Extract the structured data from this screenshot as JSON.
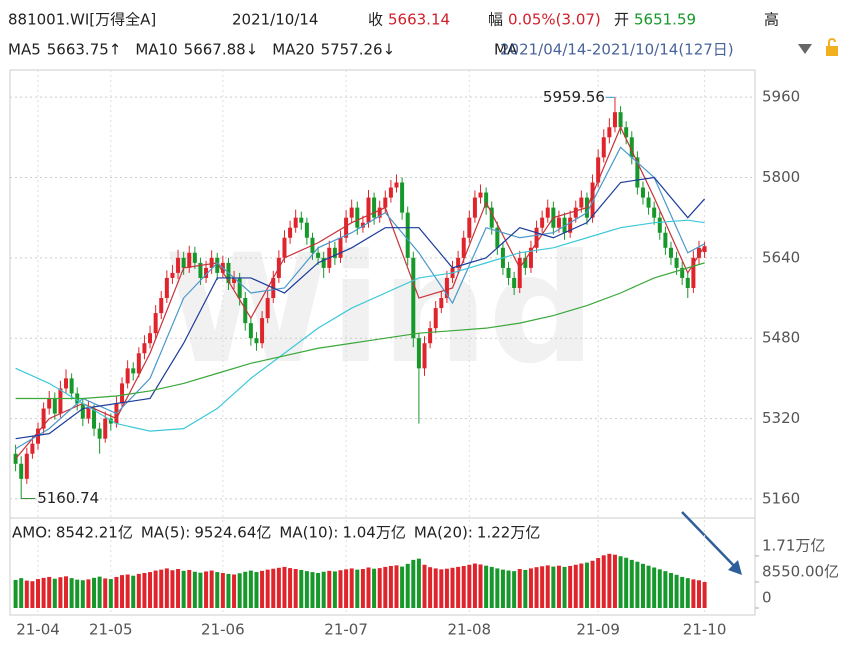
{
  "header": {
    "code": "881001.WI[万得全A]",
    "date": "2021/10/14",
    "close_label": "收",
    "close": 5663.14,
    "change_label": "幅",
    "change": "0.05%(3.07)",
    "open_label": "开",
    "open": 5651.59,
    "high_label": "高",
    "range_prefix": "MA",
    "range": "2021/04/14-2021/10/14(127日)"
  },
  "chart_data": [
    {
      "type": "candlestick",
      "up_color": "#e0242b",
      "down_color": "#16982a",
      "xlim": [
        -1,
        132
      ],
      "ylim": [
        5130,
        6010
      ],
      "yticks": [
        5160,
        5320,
        5480,
        5640,
        5800,
        5960
      ],
      "xticks": [
        {
          "value": 4,
          "label": "21-04"
        },
        {
          "value": 17,
          "label": "21-05"
        },
        {
          "value": 37,
          "label": "21-06"
        },
        {
          "value": 59,
          "label": "21-07"
        },
        {
          "value": 81,
          "label": "21-08"
        },
        {
          "value": 104,
          "label": "21-09"
        },
        {
          "value": 123,
          "label": "21-10"
        }
      ],
      "grid": true,
      "watermark": "Wind",
      "candles": [
        [
          5250,
          5268,
          5215,
          5230
        ],
        [
          5230,
          5245,
          5160.74,
          5200
        ],
        [
          5200,
          5262,
          5190,
          5250
        ],
        [
          5250,
          5285,
          5240,
          5270
        ],
        [
          5270,
          5312,
          5258,
          5300
        ],
        [
          5300,
          5352,
          5290,
          5340
        ],
        [
          5340,
          5375,
          5328,
          5360
        ],
        [
          5360,
          5372,
          5318,
          5330
        ],
        [
          5330,
          5395,
          5322,
          5380
        ],
        [
          5380,
          5418,
          5370,
          5400
        ],
        [
          5400,
          5410,
          5358,
          5370
        ],
        [
          5370,
          5382,
          5336,
          5350
        ],
        [
          5350,
          5360,
          5305,
          5320
        ],
        [
          5320,
          5355,
          5310,
          5340
        ],
        [
          5340,
          5348,
          5285,
          5300
        ],
        [
          5300,
          5312,
          5250,
          5280
        ],
        [
          5280,
          5334,
          5272,
          5320
        ],
        [
          5320,
          5330,
          5296,
          5310
        ],
        [
          5310,
          5364,
          5302,
          5350
        ],
        [
          5350,
          5402,
          5342,
          5390
        ],
        [
          5390,
          5436,
          5380,
          5420
        ],
        [
          5420,
          5432,
          5396,
          5410
        ],
        [
          5410,
          5462,
          5402,
          5450
        ],
        [
          5450,
          5486,
          5438,
          5470
        ],
        [
          5470,
          5505,
          5460,
          5490
        ],
        [
          5490,
          5546,
          5480,
          5530
        ],
        [
          5530,
          5574,
          5518,
          5560
        ],
        [
          5560,
          5615,
          5550,
          5600
        ],
        [
          5600,
          5626,
          5588,
          5610
        ],
        [
          5610,
          5656,
          5598,
          5640
        ],
        [
          5640,
          5652,
          5606,
          5620
        ],
        [
          5620,
          5664,
          5610,
          5650
        ],
        [
          5650,
          5662,
          5618,
          5630
        ],
        [
          5630,
          5640,
          5586,
          5600
        ],
        [
          5600,
          5634,
          5590,
          5620
        ],
        [
          5620,
          5655,
          5608,
          5640
        ],
        [
          5640,
          5650,
          5596,
          5610
        ],
        [
          5610,
          5644,
          5600,
          5630
        ],
        [
          5630,
          5640,
          5576,
          5590
        ],
        [
          5590,
          5614,
          5578,
          5600
        ],
        [
          5600,
          5610,
          5545,
          5560
        ],
        [
          5560,
          5572,
          5495,
          5510
        ],
        [
          5510,
          5522,
          5465,
          5480
        ],
        [
          5480,
          5492,
          5455,
          5470
        ],
        [
          5470,
          5534,
          5460,
          5520
        ],
        [
          5520,
          5574,
          5510,
          5560
        ],
        [
          5560,
          5614,
          5550,
          5600
        ],
        [
          5600,
          5655,
          5590,
          5640
        ],
        [
          5640,
          5695,
          5630,
          5680
        ],
        [
          5680,
          5714,
          5668,
          5700
        ],
        [
          5700,
          5736,
          5690,
          5720
        ],
        [
          5720,
          5732,
          5696,
          5710
        ],
        [
          5710,
          5720,
          5666,
          5680
        ],
        [
          5680,
          5690,
          5636,
          5650
        ],
        [
          5650,
          5662,
          5626,
          5640
        ],
        [
          5640,
          5652,
          5600,
          5620
        ],
        [
          5620,
          5674,
          5610,
          5660
        ],
        [
          5660,
          5672,
          5626,
          5640
        ],
        [
          5640,
          5694,
          5630,
          5680
        ],
        [
          5680,
          5735,
          5670,
          5720
        ],
        [
          5720,
          5756,
          5710,
          5740
        ],
        [
          5740,
          5752,
          5686,
          5700
        ],
        [
          5700,
          5724,
          5690,
          5710
        ],
        [
          5710,
          5775,
          5700,
          5760
        ],
        [
          5760,
          5770,
          5706,
          5720
        ],
        [
          5720,
          5754,
          5710,
          5740
        ],
        [
          5740,
          5774,
          5730,
          5760
        ],
        [
          5760,
          5795,
          5750,
          5780
        ],
        [
          5780,
          5806,
          5770,
          5790
        ],
        [
          5790,
          5800,
          5716,
          5730
        ],
        [
          5730,
          5742,
          5625,
          5640
        ],
        [
          5640,
          5652,
          5462,
          5480
        ],
        [
          5480,
          5490,
          5310,
          5420
        ],
        [
          5420,
          5484,
          5405,
          5470
        ],
        [
          5470,
          5514,
          5460,
          5500
        ],
        [
          5500,
          5554,
          5490,
          5540
        ],
        [
          5540,
          5574,
          5530,
          5560
        ],
        [
          5560,
          5614,
          5550,
          5600
        ],
        [
          5600,
          5634,
          5590,
          5620
        ],
        [
          5620,
          5654,
          5610,
          5640
        ],
        [
          5640,
          5694,
          5630,
          5680
        ],
        [
          5680,
          5734,
          5670,
          5720
        ],
        [
          5720,
          5774,
          5710,
          5760
        ],
        [
          5760,
          5786,
          5748,
          5770
        ],
        [
          5770,
          5780,
          5726,
          5740
        ],
        [
          5740,
          5752,
          5686,
          5700
        ],
        [
          5700,
          5712,
          5646,
          5660
        ],
        [
          5660,
          5672,
          5606,
          5620
        ],
        [
          5620,
          5632,
          5586,
          5600
        ],
        [
          5600,
          5612,
          5566,
          5580
        ],
        [
          5580,
          5654,
          5570,
          5640
        ],
        [
          5640,
          5652,
          5606,
          5620
        ],
        [
          5620,
          5674,
          5610,
          5660
        ],
        [
          5660,
          5714,
          5650,
          5700
        ],
        [
          5700,
          5734,
          5690,
          5720
        ],
        [
          5720,
          5756,
          5710,
          5740
        ],
        [
          5740,
          5752,
          5686,
          5700
        ],
        [
          5700,
          5734,
          5690,
          5720
        ],
        [
          5720,
          5730,
          5676,
          5690
        ],
        [
          5690,
          5734,
          5680,
          5720
        ],
        [
          5720,
          5754,
          5710,
          5740
        ],
        [
          5740,
          5774,
          5730,
          5760
        ],
        [
          5760,
          5770,
          5706,
          5720
        ],
        [
          5720,
          5806,
          5710,
          5790
        ],
        [
          5790,
          5856,
          5780,
          5840
        ],
        [
          5840,
          5896,
          5830,
          5880
        ],
        [
          5880,
          5918,
          5868,
          5900
        ],
        [
          5900,
          5959.56,
          5890,
          5930
        ],
        [
          5930,
          5942,
          5886,
          5900
        ],
        [
          5900,
          5912,
          5866,
          5880
        ],
        [
          5880,
          5892,
          5826,
          5840
        ],
        [
          5840,
          5852,
          5766,
          5780
        ],
        [
          5780,
          5792,
          5746,
          5760
        ],
        [
          5760,
          5772,
          5726,
          5740
        ],
        [
          5740,
          5752,
          5706,
          5720
        ],
        [
          5720,
          5732,
          5676,
          5690
        ],
        [
          5690,
          5702,
          5646,
          5660
        ],
        [
          5660,
          5672,
          5626,
          5640
        ],
        [
          5640,
          5652,
          5606,
          5620
        ],
        [
          5620,
          5632,
          5586,
          5600
        ],
        [
          5600,
          5612,
          5560,
          5580
        ],
        [
          5580,
          5654,
          5570,
          5640
        ],
        [
          5640,
          5674,
          5628,
          5660
        ],
        [
          5651.59,
          5672,
          5640,
          5663.14
        ]
      ],
      "line_x": [
        0,
        6,
        12,
        18,
        24,
        30,
        36,
        42,
        48,
        54,
        60,
        66,
        72,
        78,
        84,
        90,
        96,
        102,
        108,
        114,
        120,
        123
      ],
      "lines": [
        {
          "name": "MA5",
          "value_label": "5663.75↑",
          "color": "#c8323a",
          "label_color": "#c8323a",
          "values": [
            5240,
            5320,
            5350,
            5320,
            5450,
            5620,
            5630,
            5520,
            5640,
            5670,
            5710,
            5740,
            5560,
            5580,
            5750,
            5620,
            5720,
            5740,
            5900,
            5760,
            5610,
            5663.75
          ]
        },
        {
          "name": "MA10",
          "value_label": "5667.88↓",
          "color": "#4a98cc",
          "label_color": "#3a8fc4",
          "values": [
            5260,
            5300,
            5360,
            5330,
            5400,
            5560,
            5630,
            5570,
            5580,
            5660,
            5690,
            5730,
            5650,
            5550,
            5700,
            5680,
            5690,
            5730,
            5860,
            5800,
            5650,
            5667.88
          ]
        },
        {
          "name": "MA20",
          "value_label": "5757.26↓",
          "color": "#1c3c9c",
          "label_color": "#1c3ca8",
          "values": [
            5280,
            5290,
            5340,
            5350,
            5360,
            5470,
            5600,
            5600,
            5570,
            5630,
            5660,
            5700,
            5700,
            5620,
            5640,
            5700,
            5680,
            5710,
            5790,
            5800,
            5720,
            5757.26
          ]
        },
        {
          "color": "#3cc8d8",
          "values": [
            5420,
            5390,
            5350,
            5310,
            5295,
            5300,
            5340,
            5400,
            5450,
            5500,
            5540,
            5570,
            5600,
            5610,
            5630,
            5650,
            5660,
            5680,
            5700,
            5710,
            5715,
            5710
          ]
        },
        {
          "color": "#3aa83a",
          "values": [
            5360,
            5360,
            5360,
            5365,
            5375,
            5390,
            5410,
            5430,
            5445,
            5460,
            5470,
            5480,
            5490,
            5495,
            5500,
            5510,
            5525,
            5545,
            5570,
            5600,
            5620,
            5630
          ]
        }
      ]
    },
    {
      "type": "bar",
      "xlim": [
        -1,
        132
      ],
      "ylim": [
        0,
        22000
      ],
      "yticks": [
        0,
        {
          "value": 8550,
          "label": "8550.00亿"
        },
        {
          "value": 17100,
          "label": "1.71万亿"
        }
      ],
      "stats": [
        {
          "name": "AMO:",
          "label": "8542.21亿",
          "color": "#222"
        },
        {
          "name": "MA(5):",
          "label": "9524.64亿",
          "color": "#222"
        },
        {
          "name": "MA(10):",
          "label": "1.04万亿",
          "color": "#b0303a"
        },
        {
          "name": "MA(20):",
          "label": "1.22万亿",
          "color": "#2a4aa8"
        }
      ],
      "values": [
        9200,
        9800,
        9000,
        8800,
        9500,
        9900,
        10200,
        9600,
        10100,
        10400,
        9800,
        9300,
        9100,
        9400,
        9900,
        10300,
        9700,
        9500,
        10200,
        10800,
        11000,
        10600,
        11200,
        11500,
        11800,
        12300,
        12600,
        13000,
        12400,
        12800,
        12200,
        12500,
        11900,
        11600,
        12000,
        12300,
        11800,
        11500,
        11200,
        11000,
        11400,
        11900,
        12300,
        11800,
        12200,
        12600,
        12900,
        13200,
        13500,
        13100,
        12800,
        12500,
        12100,
        11800,
        11500,
        11900,
        12200,
        12000,
        12400,
        12700,
        13000,
        12600,
        12800,
        13300,
        12900,
        13100,
        13500,
        13800,
        14000,
        13600,
        14500,
        15800,
        16200,
        14200,
        13400,
        13000,
        12700,
        12900,
        13200,
        13500,
        13800,
        14200,
        14600,
        14300,
        13900,
        13500,
        13000,
        12600,
        12300,
        12100,
        12800,
        12500,
        13000,
        13400,
        13700,
        14000,
        13600,
        13900,
        13500,
        13800,
        14200,
        14600,
        14900,
        15500,
        16400,
        17300,
        17800,
        17500,
        17000,
        16500,
        15800,
        15200,
        14500,
        13900,
        13300,
        12700,
        12100,
        11500,
        10900,
        10200,
        9800,
        9400,
        9100,
        8542.21
      ]
    }
  ]
}
